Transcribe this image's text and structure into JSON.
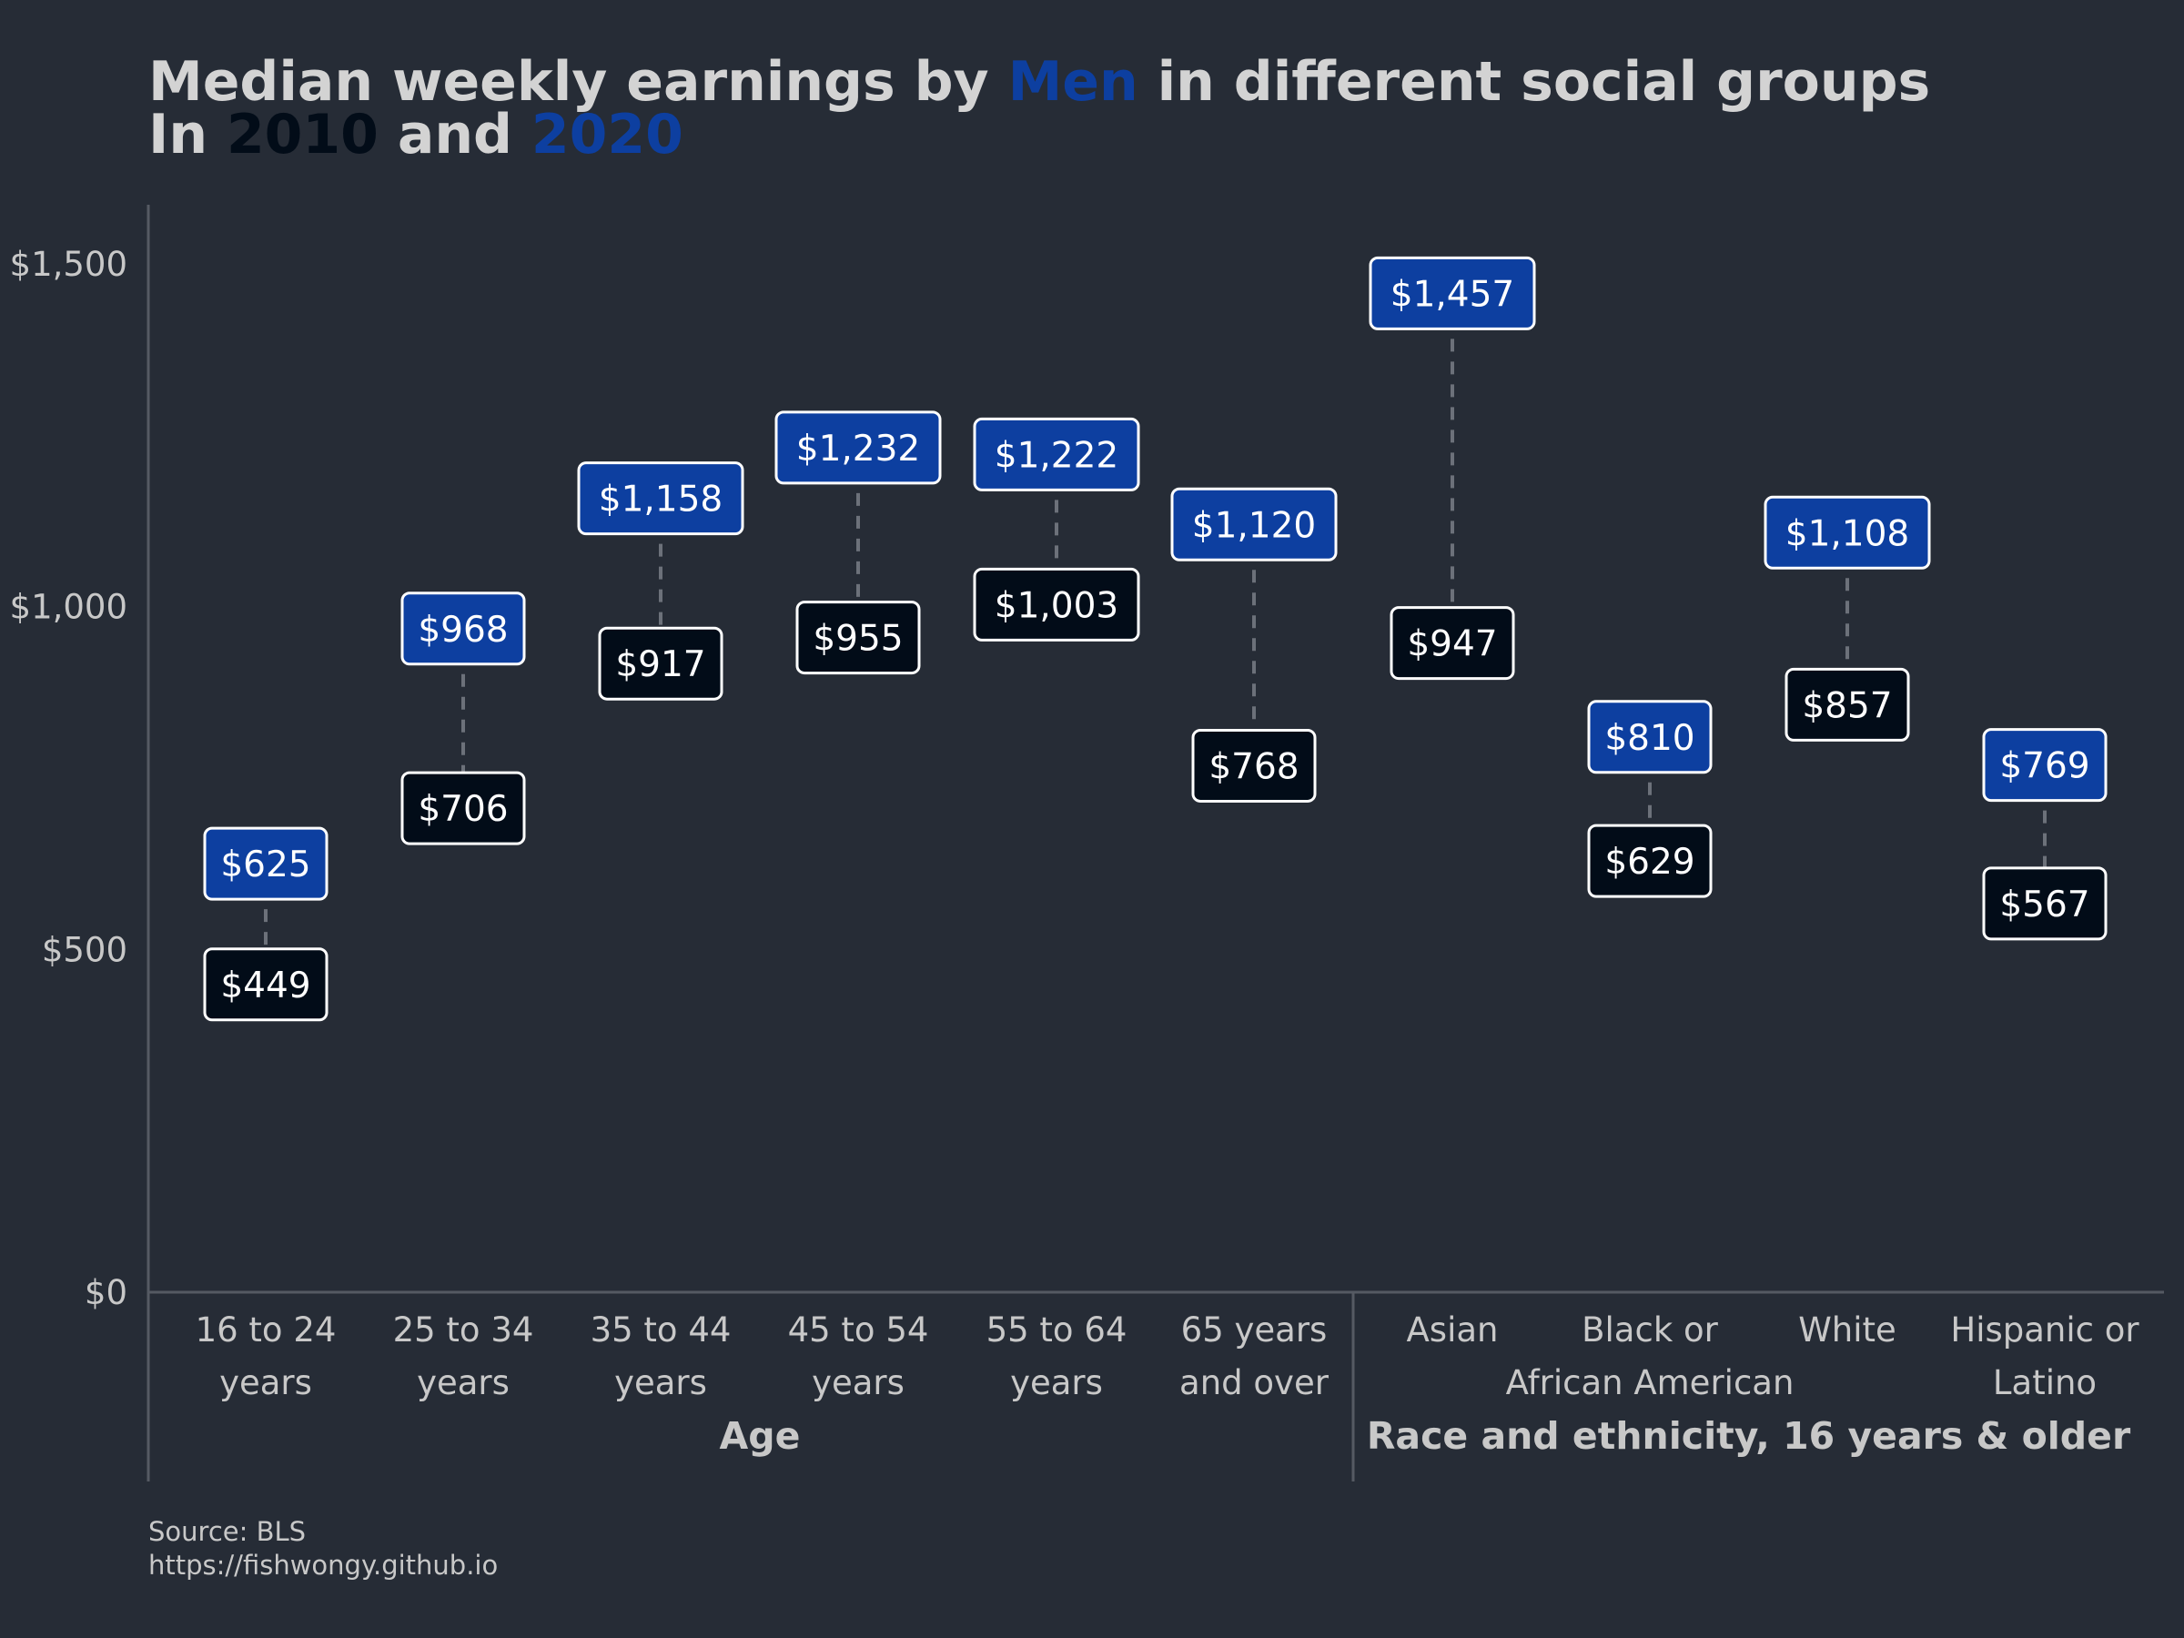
{
  "title": {
    "line1": [
      "Median weekly earnings by ",
      "Men",
      " in different social groups"
    ],
    "line2": [
      "In ",
      "2010",
      " and ",
      "2020"
    ]
  },
  "caption": {
    "source": "Source: BLS",
    "url": "https://fishwongy.github.io"
  },
  "colors": {
    "background": "#262c36",
    "men": "#0d3fa0",
    "year_2010": "#020c18",
    "year_2020": "#0d3fa0",
    "text": "#c8c8c8",
    "title": "#d3d3d3",
    "axis": "#555a63",
    "connector": "#6c717a"
  },
  "chart_data": {
    "type": "dumbbell",
    "y_axis": {
      "ylim": [
        0,
        1600
      ],
      "ticks": [
        0,
        500,
        1000,
        1500
      ],
      "tick_labels": [
        "$0",
        "$500",
        "$1,000",
        "$1,500"
      ]
    },
    "groups": [
      {
        "label": "Age",
        "categories": [
          0,
          1,
          2,
          3,
          4,
          5
        ]
      },
      {
        "label": "Race and ethnicity, 16 years & older",
        "categories": [
          6,
          7,
          8,
          9
        ]
      }
    ],
    "categories": [
      [
        "16 to 24",
        "years"
      ],
      [
        "25 to 34",
        "years"
      ],
      [
        "35 to 44",
        "years"
      ],
      [
        "45 to 54",
        "years"
      ],
      [
        "55 to 64",
        "years"
      ],
      [
        "65 years",
        "and over"
      ],
      [
        "Asian",
        ""
      ],
      [
        "Black or",
        "African American"
      ],
      [
        "White",
        ""
      ],
      [
        "Hispanic or",
        "Latino"
      ]
    ],
    "series": [
      {
        "name": "2010",
        "values": [
          449,
          706,
          917,
          955,
          1003,
          768,
          947,
          629,
          857,
          567
        ],
        "labels": [
          "$449",
          "$706",
          "$917",
          "$955",
          "$1,003",
          "$768",
          "$947",
          "$629",
          "$857",
          "$567"
        ]
      },
      {
        "name": "2020",
        "values": [
          625,
          968,
          1158,
          1232,
          1222,
          1120,
          1457,
          810,
          1108,
          769
        ],
        "labels": [
          "$625",
          "$968",
          "$1,158",
          "$1,232",
          "$1,222",
          "$1,120",
          "$1,457",
          "$810",
          "$1,108",
          "$769"
        ]
      }
    ]
  }
}
